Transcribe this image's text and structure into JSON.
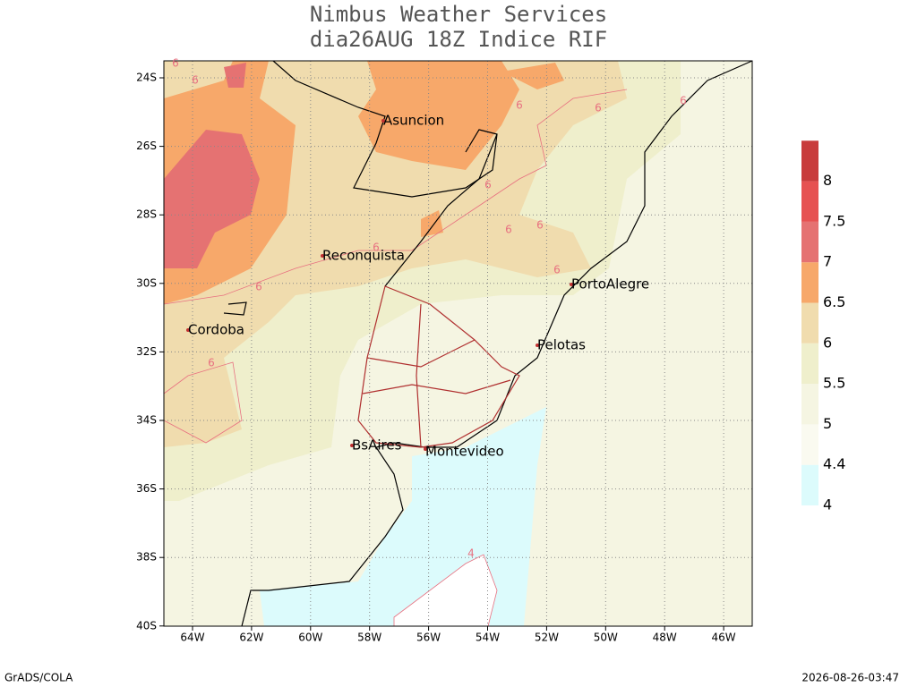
{
  "title": [
    "Nimbus Weather Services",
    "dia26AUG 18Z Indice RIF"
  ],
  "lat_ticks": [
    "24S",
    "26S",
    "28S",
    "30S",
    "32S",
    "34S",
    "36S",
    "38S",
    "40S"
  ],
  "lon_ticks": [
    "64W",
    "62W",
    "60W",
    "58W",
    "56W",
    "54W",
    "52W",
    "50W",
    "48W",
    "46W"
  ],
  "cities": [
    "Asuncion",
    "Reconquista",
    "PortoAlegre",
    "Cordoba",
    "Pelotas",
    "BsAires",
    "Montevideo"
  ],
  "contour_labels": [
    "6",
    "6",
    "6",
    "6",
    "6",
    "6",
    "6",
    "6",
    "6",
    "6",
    "6",
    "6",
    "4"
  ],
  "colorbar": {
    "values": [
      4,
      4.4,
      5,
      5.5,
      6,
      6.5,
      7,
      7.5,
      8
    ],
    "colors": [
      "#dcfbfc",
      "#fafaf0",
      "#f5f5e2",
      "#efefcc",
      "#f0dcae",
      "#f7a86a",
      "#e57272",
      "#e65252",
      "#c83c3c"
    ]
  },
  "footer_left": "GrADS/COLA",
  "footer_right": "2026-08-26-03:47"
}
